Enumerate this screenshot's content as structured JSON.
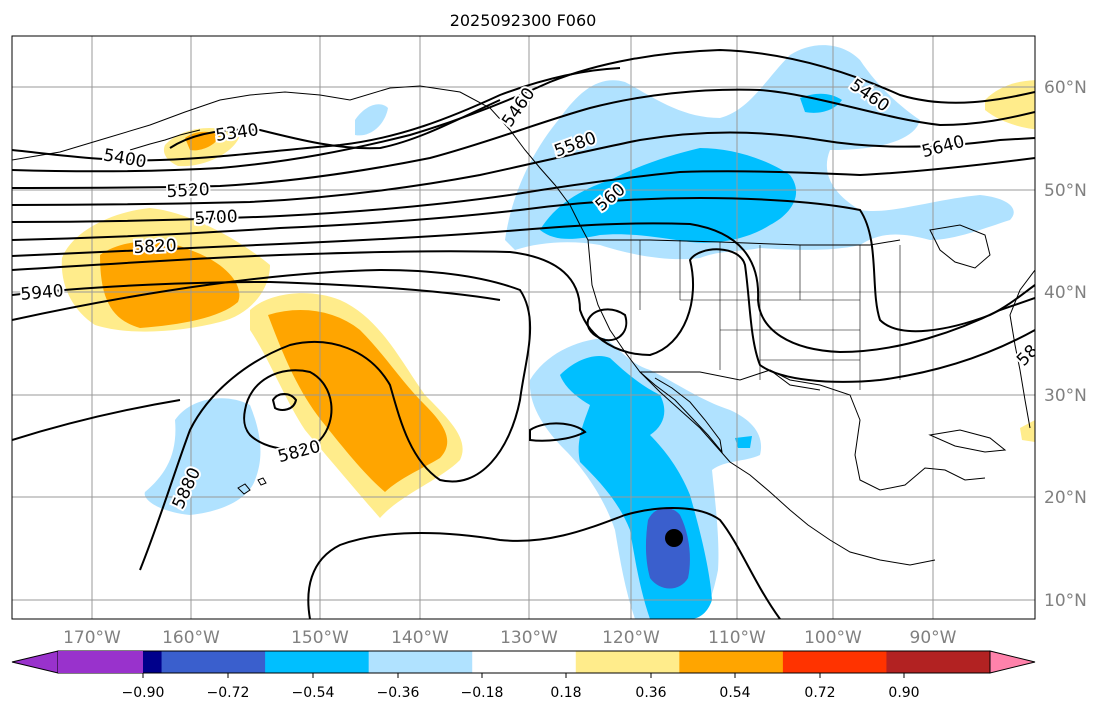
{
  "title": "2025092300 F060",
  "map": {
    "lon_labels": [
      "170°W",
      "160°W",
      "150°W",
      "140°W",
      "130°W",
      "120°W",
      "110°W",
      "100°W",
      "90°W"
    ],
    "lat_labels": [
      "60°N",
      "50°N",
      "40°N",
      "30°N",
      "20°N",
      "10°N"
    ],
    "contour_labels": [
      "5340",
      "5400",
      "5520",
      "5700",
      "5820",
      "5940",
      "5820",
      "5880",
      "5460",
      "5580",
      "560",
      "5460",
      "5640",
      "58"
    ],
    "storm_marker": "dot"
  },
  "colorbar": {
    "ticks": [
      "−0.90",
      "−0.72",
      "−0.54",
      "−0.36",
      "−0.18",
      "0.18",
      "0.36",
      "0.54",
      "0.72",
      "0.90"
    ],
    "colors": [
      "#9932cc",
      "#00008b",
      "#3a5fcd",
      "#00bfff",
      "#b0e2ff",
      "#ffffff",
      "#ffec8b",
      "#ffa500",
      "#ff3300",
      "#b22222",
      "#ff82ab"
    ]
  },
  "fill_colors": {
    "light_blue": "#b0e2ff",
    "deep_sky_blue": "#00bfff",
    "royal_blue": "#3a5fcd",
    "light_yellow": "#ffec8b",
    "orange": "#ffa500"
  }
}
